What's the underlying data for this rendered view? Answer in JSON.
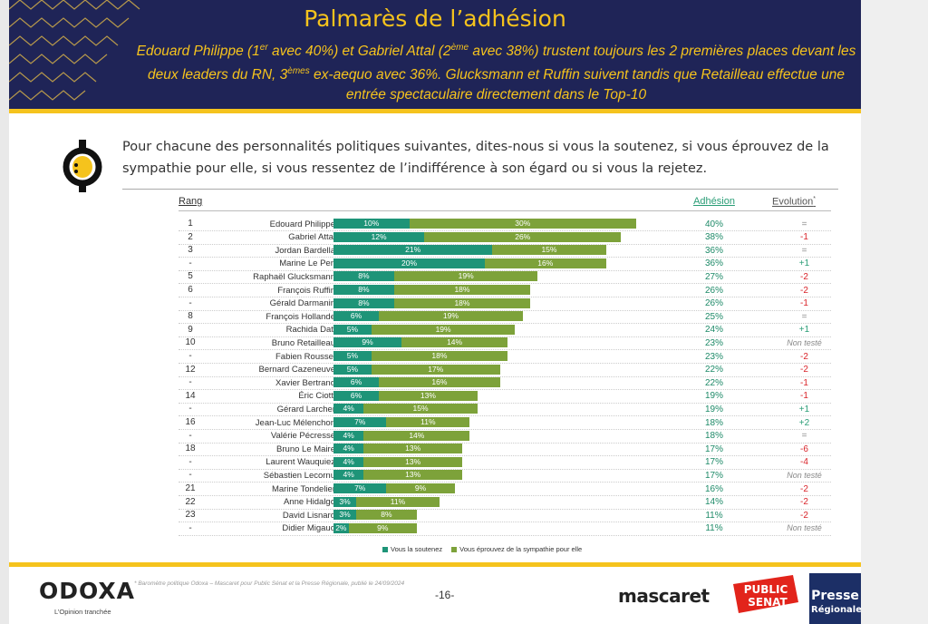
{
  "header": {
    "title": "Palmarès de l’adhésion",
    "subtitle_parts": [
      "Edouard Philippe (1",
      "er",
      " avec 40%) et Gabriel Attal (2",
      "ème",
      " avec 38%) trustent toujours les 2 premières places devant les deux leaders du RN, 3",
      "èmes",
      " ex-aequo avec 36%. Glucksmann et Ruffin suivent tandis que Retailleau effectue une entrée spectaculaire directement dans le Top-10"
    ]
  },
  "question": "Pour chacune des personnalités politiques suivantes, dites-nous si vous la soutenez, si vous éprouvez de la sympathie pour elle, si vous ressentez de l’indifférence à son égard ou si vous la rejetez.",
  "table_headers": {
    "rank": "Rang",
    "adhesion": "Adhésion",
    "evolution": "Evolution",
    "evolution_mark": "*"
  },
  "colors": {
    "soutenez": "#1e9478",
    "sympathie": "#7da23a",
    "navy": "#1f2457",
    "yellow": "#f5c31d"
  },
  "chart_data": {
    "type": "bar",
    "orientation": "horizontal",
    "stacked": true,
    "title": "Palmarès de l’adhésion",
    "xlim": [
      0,
      45
    ],
    "categories": [
      "Edouard Philippe",
      "Gabriel Attal",
      "Jordan Bardella",
      "Marine Le Pen",
      "Raphaël Glucksmann",
      "François Ruffin",
      "Gérald Darmanin",
      "François Hollande",
      "Rachida Dati",
      "Bruno Retailleau",
      "Fabien Roussel",
      "Bernard Cazeneuve",
      "Xavier Bertrand",
      "Éric Ciotti",
      "Gérard Larcher",
      "Jean-Luc Mélenchon",
      "Valérie Pécresse",
      "Bruno Le Maire",
      "Laurent Wauquiez",
      "Sébastien Lecornu",
      "Marine Tondelier",
      "Anne Hidalgo",
      "David Lisnard",
      "Didier Migaud"
    ],
    "ranks": [
      "1",
      "2",
      "3",
      "-",
      "5",
      "6",
      "-",
      "8",
      "9",
      "10",
      "-",
      "12",
      "-",
      "14",
      "-",
      "16",
      "-",
      "18",
      "-",
      "-",
      "21",
      "22",
      "23",
      "-"
    ],
    "series": [
      {
        "name": "Vous la soutenez",
        "values": [
          10,
          12,
          21,
          20,
          8,
          8,
          8,
          6,
          5,
          9,
          5,
          5,
          6,
          6,
          4,
          7,
          4,
          4,
          4,
          4,
          7,
          3,
          3,
          2
        ]
      },
      {
        "name": "Vous éprouvez de la sympathie pour elle",
        "values": [
          30,
          26,
          15,
          16,
          19,
          18,
          18,
          19,
          19,
          14,
          18,
          17,
          16,
          13,
          15,
          11,
          14,
          13,
          13,
          13,
          9,
          11,
          8,
          9
        ]
      }
    ],
    "adhesion": [
      "40%",
      "38%",
      "36%",
      "36%",
      "27%",
      "26%",
      "26%",
      "25%",
      "24%",
      "23%",
      "23%",
      "22%",
      "22%",
      "19%",
      "19%",
      "18%",
      "18%",
      "17%",
      "17%",
      "17%",
      "16%",
      "14%",
      "11%",
      "11%"
    ],
    "evolution": [
      "=",
      "-1",
      "=",
      "+1",
      "-2",
      "-2",
      "-1",
      "=",
      "+1",
      "Non testé",
      "-2",
      "-2",
      "-1",
      "-1",
      "+1",
      "+2",
      "=",
      "-6",
      "-4",
      "Non testé",
      "-2",
      "-2",
      "-2",
      "Non testé"
    ],
    "legend": [
      "Vous la soutenez",
      "Vous éprouvez de la sympathie pour elle"
    ],
    "legend_position": "bottom"
  },
  "footer": {
    "brand": "ODOXA",
    "tagline": "L’Opinion tranchée",
    "source": "* Baromètre politique Odoxa – Mascaret pour Public Sénat et la Presse Régionale, publié le 24/09/2024",
    "page": "-16-",
    "mascaret": "mascaret",
    "public_senat_1": "PUBLIC",
    "public_senat_2": "SENAT",
    "presse_1": "Presse",
    "presse_2": "Régionale"
  }
}
